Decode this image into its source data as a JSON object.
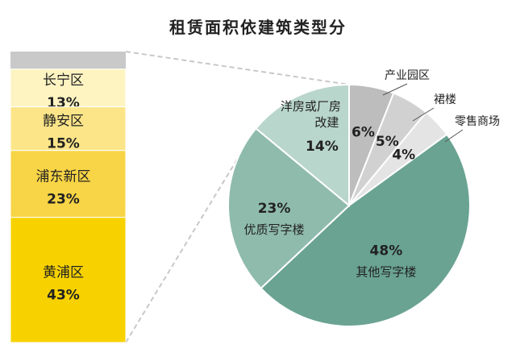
{
  "title": "租赁面积依建筑类型分",
  "chart_data": [
    {
      "type": "pie",
      "title": "租赁面积依建筑类型分",
      "slices": [
        {
          "label": "产业园区",
          "value": 6,
          "value_label": "6%",
          "color": "#bdbdbd"
        },
        {
          "label": "裙楼",
          "value": 5,
          "value_label": "5%",
          "color": "#d1d1d1"
        },
        {
          "label": "零售商场",
          "value": 4,
          "value_label": "4%",
          "color": "#e4e4e4"
        },
        {
          "label": "其他写字楼",
          "value": 48,
          "value_label": "48%",
          "color": "#6aa392"
        },
        {
          "label": "优质写字楼",
          "value": 23,
          "value_label": "23%",
          "color": "#8fbbad"
        },
        {
          "label": "洋房或厂房改建",
          "value": 14,
          "value_label": "14%",
          "color": "#b9d6cc"
        }
      ]
    },
    {
      "type": "bar",
      "stacked": true,
      "categories": [
        "长宁区",
        "静安区",
        "浦东新区",
        "黄浦区"
      ],
      "values": [
        13,
        15,
        23,
        43
      ],
      "value_labels": [
        "13%",
        "15%",
        "23%",
        "43%"
      ],
      "colors": [
        "#fdf4c2",
        "#fbe588",
        "#f8d546",
        "#f7d200"
      ],
      "top_remainder": 6,
      "top_remainder_color": "#c9c9c9"
    }
  ]
}
